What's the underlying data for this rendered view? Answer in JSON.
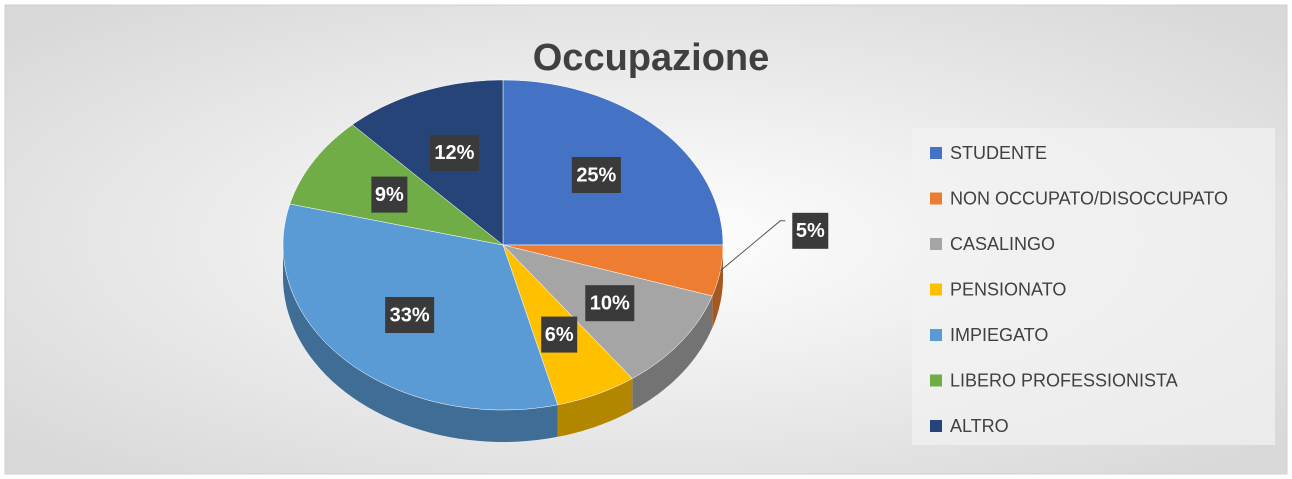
{
  "chart_data": {
    "type": "pie",
    "title": "Occupazione",
    "categories": [
      "STUDENTE",
      "NON OCCUPATO/DISOCCUPATO",
      "CASALINGO",
      "PENSIONATO",
      "IMPIEGATO",
      "LIBERO PROFESSIONISTA",
      "ALTRO"
    ],
    "values": [
      25,
      5,
      10,
      6,
      33,
      9,
      12
    ],
    "value_labels": [
      "25%",
      "5%",
      "10%",
      "6%",
      "33%",
      "9%",
      "12%"
    ],
    "colors": [
      "#4472c4",
      "#ed7d31",
      "#a5a5a5",
      "#ffc000",
      "#5b9bd5",
      "#70ad47",
      "#264478"
    ],
    "legend": "right"
  }
}
